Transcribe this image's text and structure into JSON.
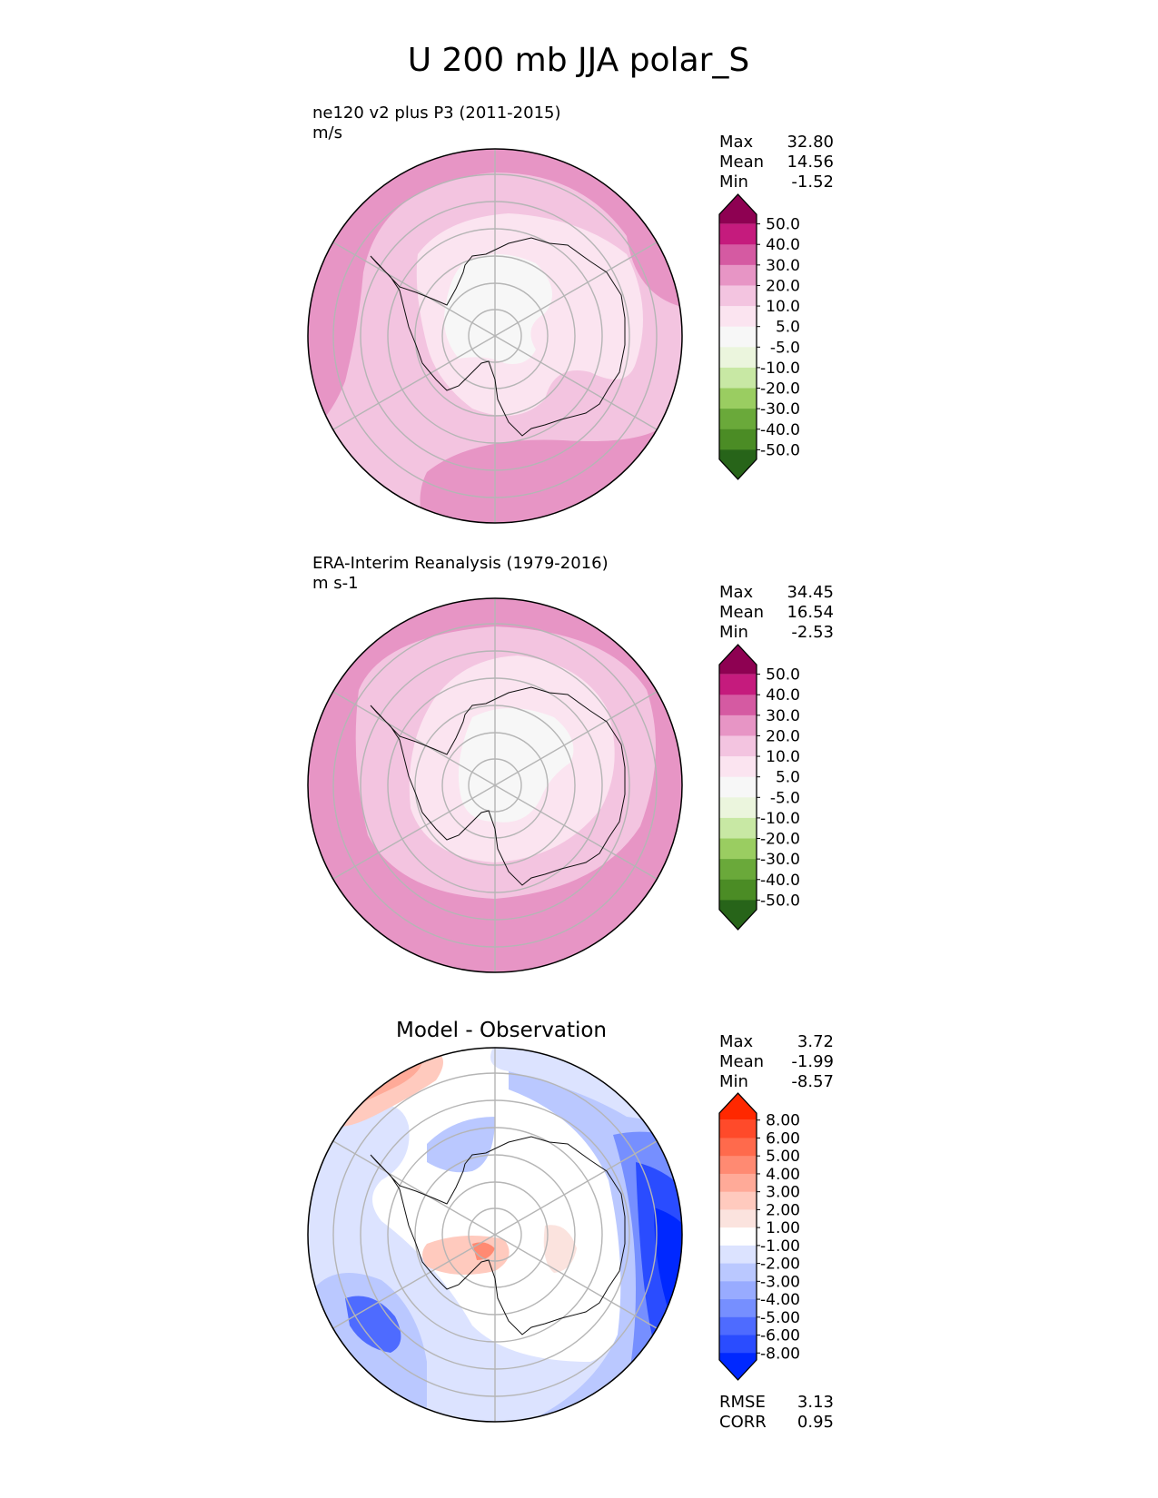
{
  "title": "U 200 mb JJA polar_S",
  "chart_data": [
    {
      "type": "contour-polar-map",
      "name": "test",
      "title": "ne120 v2 plus P3 (2011-2015)",
      "units": "m/s",
      "stats": {
        "Max": {
          "label": "Max",
          "value": "32.80"
        },
        "Mean": {
          "label": "Mean",
          "value": "14.56"
        },
        "Min": {
          "label": "Min",
          "value": "-1.52"
        }
      },
      "colorbar": {
        "ticks": [
          "50.0",
          "40.0",
          "30.0",
          "20.0",
          "10.0",
          "5.0",
          "-5.0",
          "-10.0",
          "-20.0",
          "-30.0",
          "-40.0",
          "-50.0"
        ],
        "colors": [
          "#8e0152",
          "#c51b7d",
          "#d55aa2",
          "#e795c5",
          "#f3c4e0",
          "#fbe4f0",
          "#f7f7f7",
          "#ebf5dd",
          "#c8e8a4",
          "#9acd61",
          "#6aa93a",
          "#4b8c25",
          "#276419"
        ]
      },
      "field": [
        {
          "level": "#f3c4e0"
        },
        {
          "level": "#e795c5"
        },
        {
          "level": "#d55aa2"
        },
        {
          "level": "#fbe4f0"
        },
        {
          "level": "#f7f7f7"
        }
      ]
    },
    {
      "type": "contour-polar-map",
      "name": "reference",
      "title": "ERA-Interim Reanalysis (1979-2016)",
      "units": "m s-1",
      "stats": {
        "Max": {
          "label": "Max",
          "value": "34.45"
        },
        "Mean": {
          "label": "Mean",
          "value": "16.54"
        },
        "Min": {
          "label": "Min",
          "value": "-2.53"
        }
      },
      "colorbar": {
        "ticks": [
          "50.0",
          "40.0",
          "30.0",
          "20.0",
          "10.0",
          "5.0",
          "-5.0",
          "-10.0",
          "-20.0",
          "-30.0",
          "-40.0",
          "-50.0"
        ],
        "colors": [
          "#8e0152",
          "#c51b7d",
          "#d55aa2",
          "#e795c5",
          "#f3c4e0",
          "#fbe4f0",
          "#f7f7f7",
          "#ebf5dd",
          "#c8e8a4",
          "#9acd61",
          "#6aa93a",
          "#4b8c25",
          "#276419"
        ]
      }
    },
    {
      "type": "contour-polar-map",
      "name": "difference",
      "title": "Model - Observation",
      "stats": {
        "Max": {
          "label": "Max",
          "value": "3.72"
        },
        "Mean": {
          "label": "Mean",
          "value": "-1.99"
        },
        "Min": {
          "label": "Min",
          "value": "-8.57"
        }
      },
      "metrics": {
        "RMSE": {
          "label": "RMSE",
          "value": "3.13"
        },
        "CORR": {
          "label": "CORR",
          "value": "0.95"
        }
      },
      "colorbar": {
        "ticks": [
          "8.00",
          "6.00",
          "5.00",
          "4.00",
          "3.00",
          "2.00",
          "1.00",
          "-1.00",
          "-2.00",
          "-3.00",
          "-4.00",
          "-5.00",
          "-6.00",
          "-8.00"
        ],
        "colors": [
          "#ff2800",
          "#ff4a2a",
          "#ff6a4c",
          "#ff8a72",
          "#ffaa98",
          "#ffcabe",
          "#fbe3de",
          "#ffffff",
          "#dce3ff",
          "#bac8ff",
          "#98abff",
          "#768fff",
          "#4e6bff",
          "#2a4cff",
          "#0028ff"
        ]
      }
    }
  ]
}
